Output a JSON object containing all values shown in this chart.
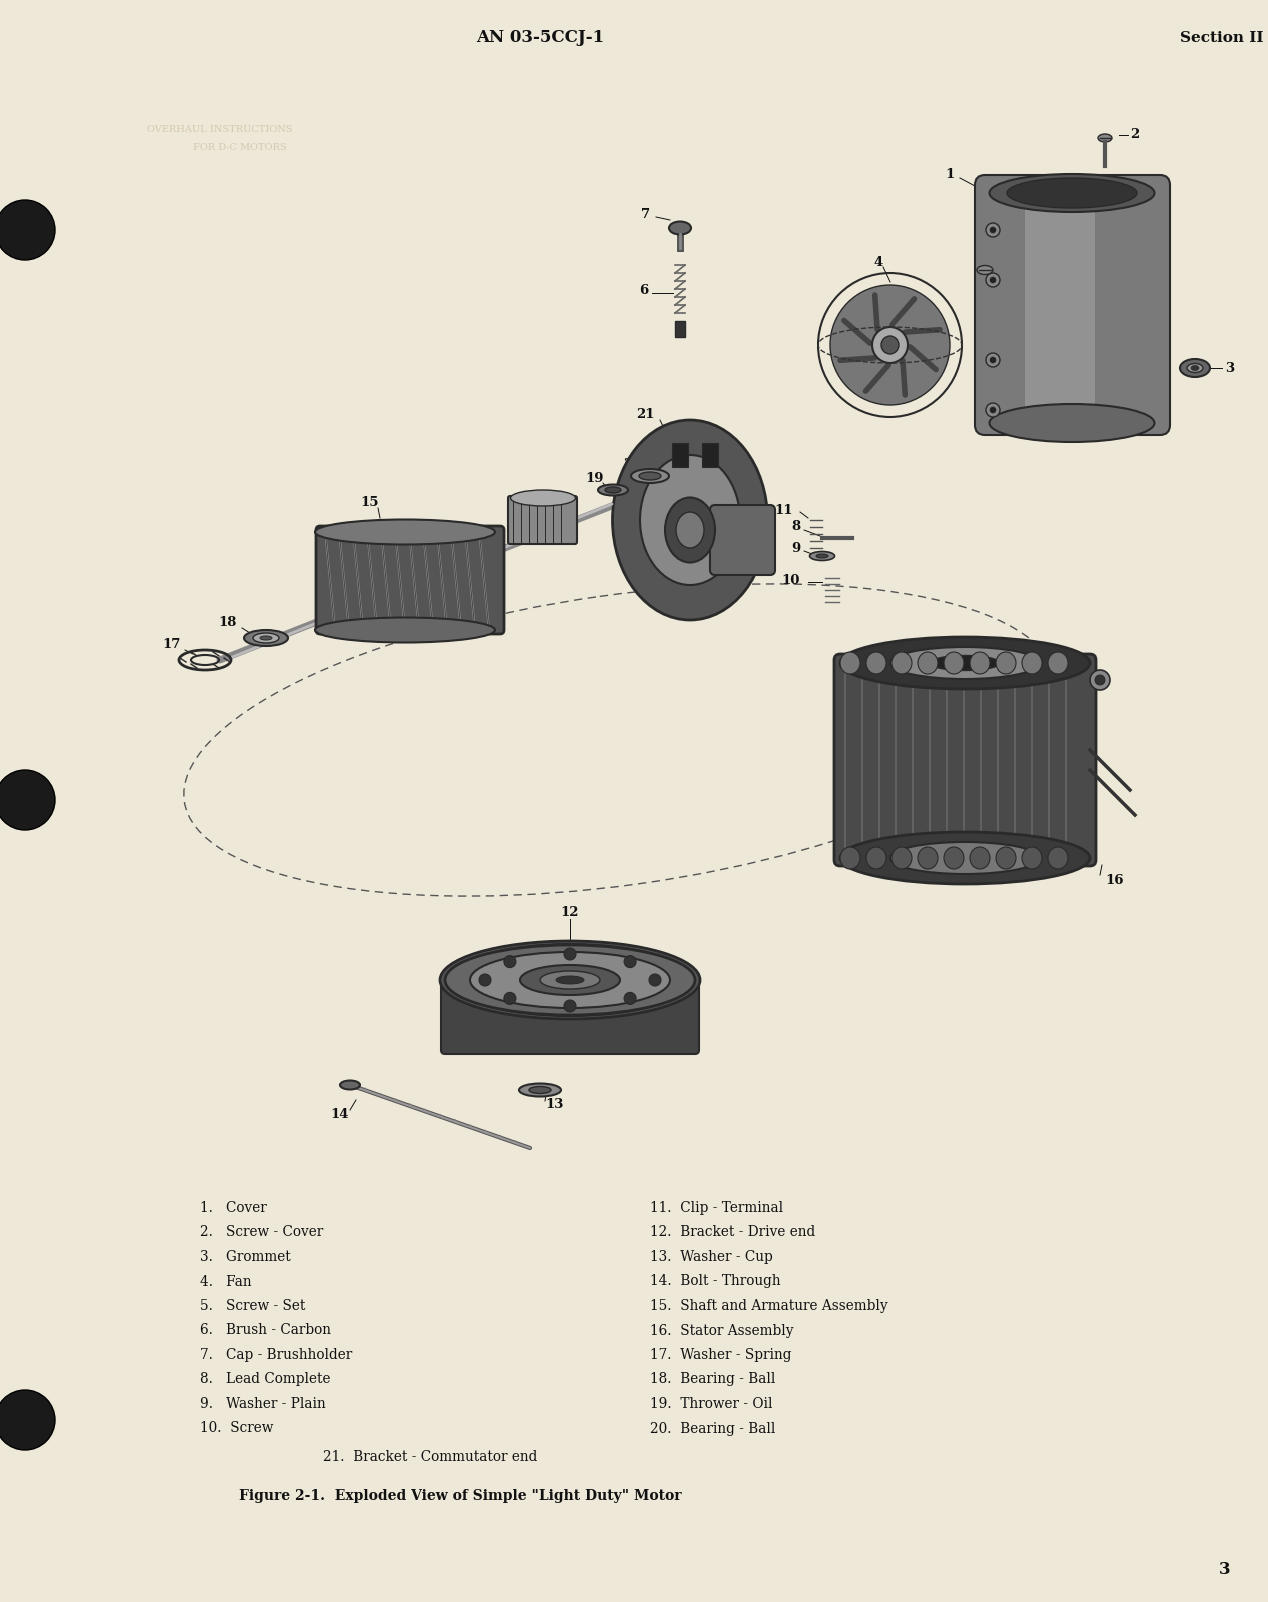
{
  "bg_color": "#ede8d8",
  "header_center": "AN 03-5CCJ-1",
  "header_right": "Section II",
  "page_number": "3",
  "parts_left": [
    "1.   Cover",
    "2.   Screw - Cover",
    "3.   Grommet",
    "4.   Fan",
    "5.   Screw - Set",
    "6.   Brush - Carbon",
    "7.   Cap - Brushholder",
    "8.   Lead Complete",
    "9.   Washer - Plain",
    "10.  Screw"
  ],
  "parts_right": [
    "11.  Clip - Terminal",
    "12.  Bracket - Drive end",
    "13.  Washer - Cup",
    "14.  Bolt - Through",
    "15.  Shaft and Armature Assembly",
    "16.  Stator Assembly",
    "17.  Washer - Spring",
    "18.  Bearing - Ball",
    "19.  Thrower - Oil",
    "20.  Bearing - Ball"
  ],
  "part_center": "21.  Bracket - Commutator end",
  "figure_caption": "Figure 2-1.  Exploded View of Simple \"Light Duty\" Motor",
  "text_color": "#111111",
  "line_color": "#222222",
  "part_color": "#2a2a2a",
  "part_fill": "#505050",
  "part_fill_light": "#888888",
  "part_fill_mid": "#404040",
  "font_family": "serif"
}
